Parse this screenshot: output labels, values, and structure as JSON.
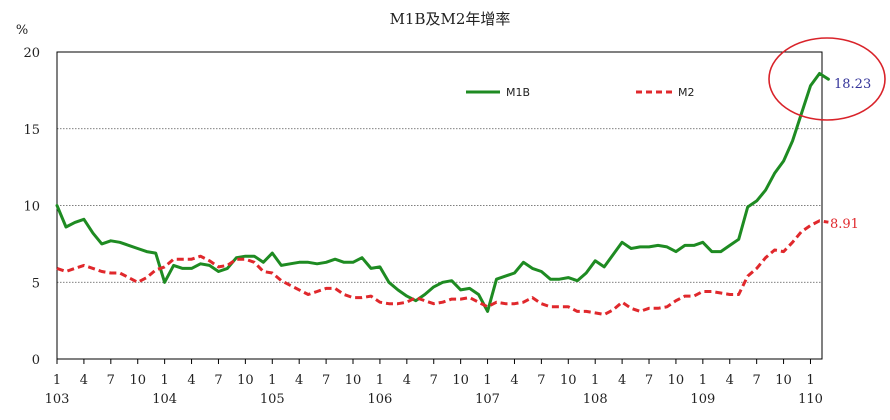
{
  "chart_data": {
    "type": "line",
    "title": "M1B及M2年增率",
    "ylabel": "%",
    "ylim": [
      0,
      20
    ],
    "yticks": [
      0,
      5,
      10,
      15,
      20
    ],
    "grid": "horizontal dotted at 5, 10, 15",
    "legend_placement": "top-right",
    "month_ticks": [
      "1",
      "4",
      "7",
      "10",
      "1",
      "4",
      "7",
      "10",
      "1",
      "4",
      "7",
      "10",
      "1",
      "4",
      "7",
      "10",
      "1",
      "4",
      "7",
      "10",
      "1",
      "4",
      "7",
      "10",
      "1",
      "4",
      "7",
      "10",
      "1"
    ],
    "year_ticks": [
      {
        "label": "103",
        "index": 0
      },
      {
        "label": "104",
        "index": 12
      },
      {
        "label": "105",
        "index": 24
      },
      {
        "label": "106",
        "index": 36
      },
      {
        "label": "107",
        "index": 48
      },
      {
        "label": "108",
        "index": 60
      },
      {
        "label": "109",
        "index": 72
      },
      {
        "label": "110",
        "index": 84
      }
    ],
    "end_labels": {
      "m1b": "18.23",
      "m2": "8.91"
    },
    "series": [
      {
        "name": "M1B",
        "color": "#1e8b22",
        "style": "solid",
        "values": [
          10.0,
          8.6,
          8.9,
          9.1,
          8.2,
          7.5,
          7.7,
          7.6,
          7.4,
          7.2,
          7.0,
          6.9,
          5.0,
          6.1,
          5.9,
          5.9,
          6.2,
          6.1,
          5.7,
          5.9,
          6.6,
          6.7,
          6.7,
          6.3,
          6.9,
          6.1,
          6.2,
          6.3,
          6.3,
          6.2,
          6.3,
          6.5,
          6.3,
          6.3,
          6.6,
          5.9,
          6.0,
          5.0,
          4.5,
          4.1,
          3.8,
          4.2,
          4.7,
          5.0,
          5.1,
          4.5,
          4.6,
          4.2,
          3.1,
          5.2,
          5.4,
          5.6,
          6.3,
          5.9,
          5.7,
          5.2,
          5.2,
          5.3,
          5.1,
          5.6,
          6.4,
          6.0,
          6.8,
          7.6,
          7.2,
          7.3,
          7.3,
          7.4,
          7.3,
          7.0,
          7.4,
          7.4,
          7.6,
          7.0,
          7.0,
          7.4,
          7.8,
          9.9,
          10.3,
          11.0,
          12.1,
          12.9,
          14.2,
          16.0,
          17.8,
          18.6,
          18.23
        ]
      },
      {
        "name": "M2",
        "color": "#e0282c",
        "style": "dashed",
        "values": [
          5.9,
          5.7,
          5.9,
          6.1,
          5.9,
          5.7,
          5.6,
          5.6,
          5.3,
          5.0,
          5.3,
          5.8,
          6.0,
          6.5,
          6.5,
          6.5,
          6.7,
          6.4,
          6.0,
          6.1,
          6.5,
          6.5,
          6.3,
          5.7,
          5.6,
          5.1,
          4.8,
          4.5,
          4.2,
          4.4,
          4.6,
          4.6,
          4.2,
          4.0,
          4.0,
          4.1,
          3.7,
          3.6,
          3.6,
          3.7,
          4.0,
          3.8,
          3.6,
          3.7,
          3.9,
          3.9,
          4.0,
          3.7,
          3.4,
          3.7,
          3.6,
          3.6,
          3.7,
          4.0,
          3.6,
          3.4,
          3.4,
          3.4,
          3.1,
          3.1,
          3.0,
          2.9,
          3.2,
          3.7,
          3.3,
          3.1,
          3.3,
          3.3,
          3.4,
          3.8,
          4.1,
          4.1,
          4.4,
          4.4,
          4.3,
          4.2,
          4.2,
          5.4,
          5.9,
          6.6,
          7.1,
          7.0,
          7.6,
          8.3,
          8.7,
          9.0,
          8.91
        ]
      }
    ]
  }
}
